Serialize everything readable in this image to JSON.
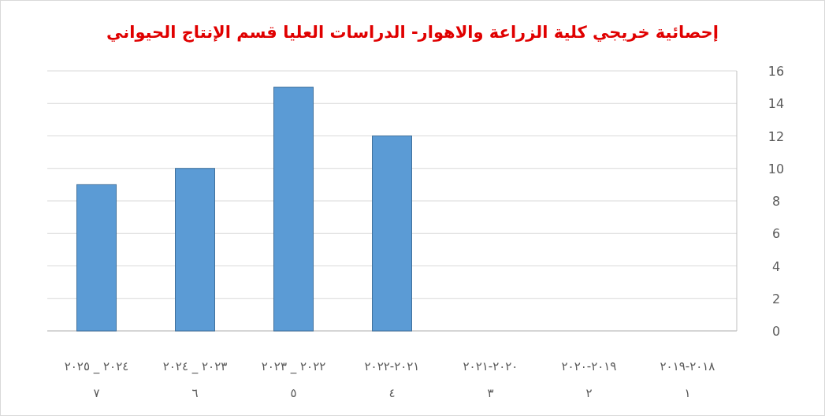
{
  "chart_data": {
    "type": "bar",
    "title": "إحصائية خريجي كلية الزراعة والاهوار- الدراسات العليا قسم الإنتاج الحيواني",
    "categories": [
      "٢٠٢٥ _ ٢٠٢٤\n٧",
      "٢٠٢٤ _ ٢٠٢٣\n٦",
      "٢٠٢٣ _ ٢٠٢٢\n٥",
      "٢٠٢٢-٢٠٢١\n٤",
      "٢٠٢١-٢٠٢٠\n٣",
      "٢٠٢٠-٢٠١٩\n٢",
      "٢٠١٩-٢٠١٨\n١"
    ],
    "values": [
      9,
      10,
      15,
      12,
      0,
      0,
      0
    ],
    "color": "#5b9bd5",
    "ylim": [
      0,
      16
    ],
    "yticks": [
      0,
      2,
      4,
      6,
      8,
      10,
      12,
      14,
      16
    ],
    "grid": "y"
  }
}
